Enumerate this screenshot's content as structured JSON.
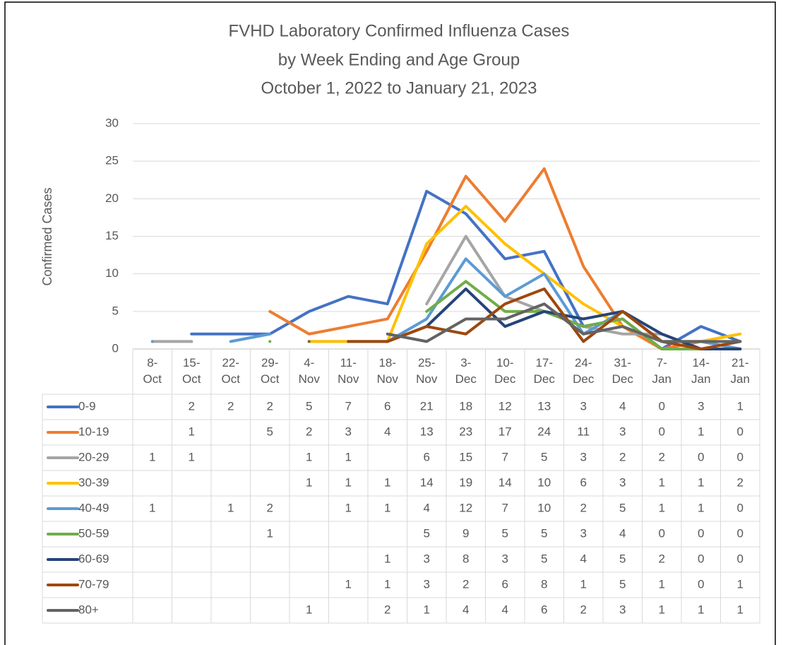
{
  "chart_data": {
    "type": "line",
    "title": [
      "FVHD Laboratory Confirmed Influenza Cases",
      "by Week Ending and Age Group",
      "October 1, 2022 to January 21, 2023"
    ],
    "y_label": "Confirmed Cases",
    "categories": [
      "8-Oct",
      "15-Oct",
      "22-Oct",
      "29-Oct",
      "4-Nov",
      "11-Nov",
      "18-Nov",
      "25-Nov",
      "3-Dec",
      "10-Dec",
      "17-Dec",
      "24-Dec",
      "31-Dec",
      "7-Jan",
      "14-Jan",
      "21-Jan"
    ],
    "ylim": [
      0,
      30
    ],
    "yticks": [
      0,
      5,
      10,
      15,
      20,
      25,
      30
    ],
    "grid": true,
    "data_table": true,
    "series": [
      {
        "name": "0-9",
        "color": "#4472c4",
        "values": [
          null,
          2,
          2,
          2,
          5,
          7,
          6,
          21,
          18,
          12,
          13,
          3,
          4,
          0,
          3,
          1
        ]
      },
      {
        "name": "10-19",
        "color": "#ed7d31",
        "values": [
          null,
          1,
          null,
          5,
          2,
          3,
          4,
          13,
          23,
          17,
          24,
          11,
          3,
          0,
          1,
          0
        ]
      },
      {
        "name": "20-29",
        "color": "#a5a5a5",
        "values": [
          1,
          1,
          null,
          null,
          1,
          1,
          null,
          6,
          15,
          7,
          5,
          3,
          2,
          2,
          0,
          0
        ]
      },
      {
        "name": "30-39",
        "color": "#ffc000",
        "values": [
          null,
          null,
          null,
          null,
          1,
          1,
          1,
          14,
          19,
          14,
          10,
          6,
          3,
          1,
          1,
          2
        ]
      },
      {
        "name": "40-49",
        "color": "#5b9bd5",
        "values": [
          1,
          null,
          1,
          2,
          null,
          1,
          1,
          4,
          12,
          7,
          10,
          2,
          5,
          1,
          1,
          0
        ]
      },
      {
        "name": "50-59",
        "color": "#70ad47",
        "values": [
          null,
          null,
          null,
          1,
          null,
          null,
          null,
          5,
          9,
          5,
          5,
          3,
          4,
          0,
          0,
          0
        ]
      },
      {
        "name": "60-69",
        "color": "#264478",
        "values": [
          null,
          null,
          null,
          null,
          null,
          null,
          1,
          3,
          8,
          3,
          5,
          4,
          5,
          2,
          0,
          0
        ]
      },
      {
        "name": "70-79",
        "color": "#9e480e",
        "values": [
          null,
          null,
          null,
          null,
          null,
          1,
          1,
          3,
          2,
          6,
          8,
          1,
          5,
          1,
          0,
          1
        ]
      },
      {
        "name": "80+",
        "color": "#636363",
        "values": [
          null,
          null,
          null,
          null,
          1,
          null,
          2,
          1,
          4,
          4,
          6,
          2,
          3,
          1,
          1,
          1
        ]
      }
    ]
  }
}
